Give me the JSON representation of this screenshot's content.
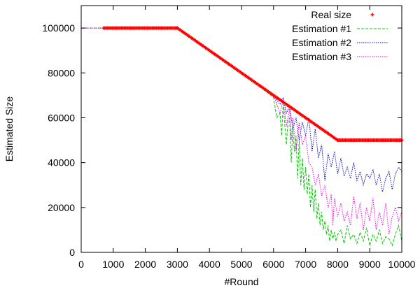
{
  "chart_data": {
    "type": "line",
    "xlabel": "#Round",
    "ylabel": "Estimated Size",
    "xlim": [
      0,
      10000
    ],
    "ylim": [
      0,
      110000
    ],
    "xticks": [
      0,
      1000,
      2000,
      3000,
      4000,
      5000,
      6000,
      7000,
      8000,
      9000,
      10000
    ],
    "yticks": [
      0,
      20000,
      40000,
      60000,
      80000,
      100000
    ],
    "grid": false,
    "legend_position": "top-right",
    "series": [
      {
        "name": "Real size",
        "style": "points",
        "color": "#ff0000",
        "segments": [
          [
            700,
            100000
          ],
          [
            3000,
            100000
          ],
          [
            8000,
            50000
          ],
          [
            10000,
            50000
          ]
        ]
      },
      {
        "name": "Estimation #1",
        "style": "dashed",
        "color": "#00cc00",
        "x": [
          0,
          3000,
          5500,
          6000,
          6100,
          6200,
          6250,
          6300,
          6400,
          6450,
          6500,
          6550,
          6600,
          6650,
          6700,
          6750,
          6800,
          6850,
          6900,
          6950,
          7000,
          7050,
          7100,
          7150,
          7200,
          7250,
          7300,
          7350,
          7400,
          7450,
          7500,
          7550,
          7600,
          7650,
          7700,
          7750,
          7800,
          7850,
          7900,
          7950,
          8000,
          8100,
          8200,
          8300,
          8400,
          8500,
          8600,
          8700,
          8800,
          8900,
          9000,
          9100,
          9200,
          9300,
          9400,
          9500,
          9600,
          9700,
          9800,
          9900,
          10000
        ],
        "y": [
          100000,
          100000,
          75000,
          69000,
          60000,
          62000,
          52000,
          66000,
          48000,
          58000,
          60000,
          40000,
          55000,
          45000,
          52000,
          33000,
          50000,
          30000,
          42000,
          28000,
          38000,
          26000,
          35000,
          20000,
          30000,
          18000,
          28000,
          15000,
          22000,
          12000,
          18000,
          10000,
          14000,
          8000,
          12000,
          5000,
          10000,
          6000,
          9000,
          5000,
          8000,
          10000,
          4000,
          12000,
          6000,
          8000,
          4000,
          9000,
          5000,
          11000,
          3000,
          8000,
          5000,
          10000,
          4000,
          7000,
          6000,
          3000,
          8000,
          12000,
          5000
        ]
      },
      {
        "name": "Estimation #2",
        "style": "dotted",
        "color": "#0000cc",
        "x": [
          0,
          3000,
          5500,
          6000,
          6200,
          6300,
          6400,
          6500,
          6600,
          6700,
          6800,
          6900,
          7000,
          7100,
          7200,
          7300,
          7400,
          7500,
          7600,
          7700,
          7800,
          7900,
          8000,
          8100,
          8200,
          8300,
          8400,
          8500,
          8600,
          8700,
          8800,
          8900,
          9000,
          9100,
          9200,
          9300,
          9400,
          9500,
          9600,
          9700,
          9800,
          9900,
          10000
        ],
        "y": [
          100000,
          100000,
          75000,
          70000,
          66000,
          69000,
          62000,
          65000,
          55000,
          60000,
          50000,
          58000,
          52000,
          60000,
          45000,
          55000,
          42000,
          48000,
          32000,
          44000,
          38000,
          45000,
          35000,
          42000,
          34000,
          38000,
          33000,
          40000,
          32000,
          36000,
          30000,
          35000,
          33000,
          37000,
          30000,
          35000,
          27000,
          33000,
          36000,
          28000,
          35000,
          38000,
          36000
        ]
      },
      {
        "name": "Estimation #3",
        "style": "dotted",
        "color": "#ff00ff",
        "x": [
          0,
          3000,
          5500,
          6000,
          6200,
          6300,
          6400,
          6500,
          6550,
          6600,
          6700,
          6800,
          6900,
          7000,
          7100,
          7200,
          7300,
          7400,
          7500,
          7600,
          7700,
          7800,
          7850,
          7900,
          8000,
          8100,
          8200,
          8300,
          8400,
          8500,
          8600,
          8700,
          8800,
          8900,
          9000,
          9100,
          9200,
          9300,
          9400,
          9500,
          9600,
          9700,
          9800,
          9900,
          10000
        ],
        "y": [
          100000,
          100000,
          75000,
          70000,
          62000,
          68000,
          56000,
          64000,
          50000,
          60000,
          45000,
          58000,
          48000,
          52000,
          40000,
          38000,
          30000,
          35000,
          25000,
          30000,
          20000,
          26000,
          12000,
          24000,
          16000,
          22000,
          14000,
          18000,
          12000,
          25000,
          15000,
          22000,
          10000,
          20000,
          14000,
          24000,
          10000,
          18000,
          12000,
          22000,
          8000,
          16000,
          20000,
          14000,
          18000
        ]
      }
    ]
  }
}
